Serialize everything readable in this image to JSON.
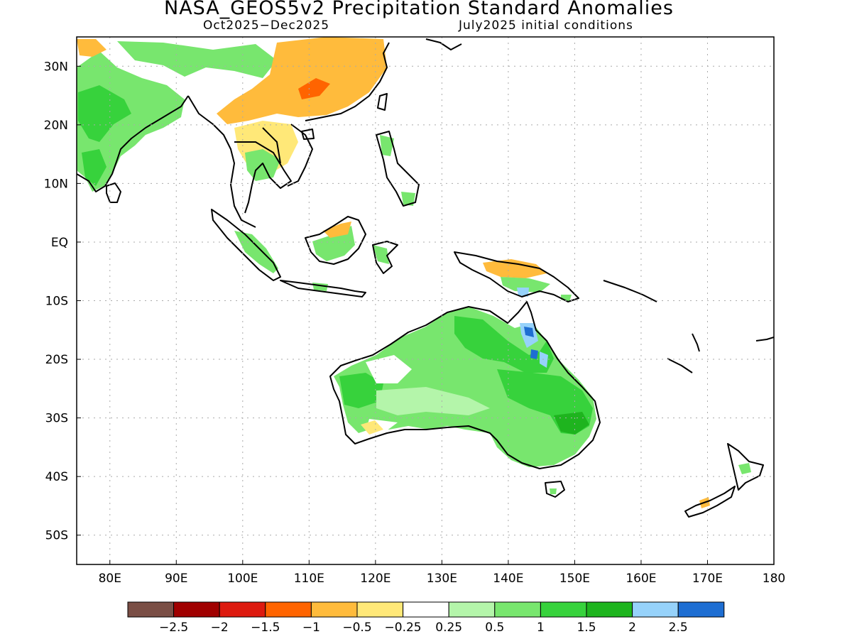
{
  "title": "NASA_GEOS5v2 Precipitation Standard Anomalies",
  "period": "Oct2025−Dec2025",
  "initial_conditions": "July2025 initial conditions",
  "map": {
    "lon_range": [
      75,
      180
    ],
    "lat_range": [
      -55,
      35
    ],
    "lon_ticks": [
      {
        "v": 80,
        "label": "80E"
      },
      {
        "v": 90,
        "label": "90E"
      },
      {
        "v": 100,
        "label": "100E"
      },
      {
        "v": 110,
        "label": "110E"
      },
      {
        "v": 120,
        "label": "120E"
      },
      {
        "v": 130,
        "label": "130E"
      },
      {
        "v": 140,
        "label": "140E"
      },
      {
        "v": 150,
        "label": "150E"
      },
      {
        "v": 160,
        "label": "160E"
      },
      {
        "v": 170,
        "label": "170E"
      },
      {
        "v": 180,
        "label": "180"
      }
    ],
    "lat_ticks": [
      {
        "v": 30,
        "label": "30N"
      },
      {
        "v": 20,
        "label": "20N"
      },
      {
        "v": 10,
        "label": "10N"
      },
      {
        "v": 0,
        "label": "EQ"
      },
      {
        "v": -10,
        "label": "10S"
      },
      {
        "v": -20,
        "label": "20S"
      },
      {
        "v": -30,
        "label": "30S"
      },
      {
        "v": -40,
        "label": "40S"
      },
      {
        "v": -50,
        "label": "50S"
      }
    ],
    "grid": true
  },
  "colorbar": {
    "colors": [
      "#7a4e45",
      "#a00000",
      "#dd1a0f",
      "#ff6400",
      "#ffbb3c",
      "#ffe878",
      "#ffffff",
      "#b4f5aa",
      "#78e66e",
      "#37d23c",
      "#1eb41e",
      "#96d2fa",
      "#1e6ed2"
    ],
    "labels": [
      "−2.5",
      "−2",
      "−1.5",
      "−1",
      "−0.5",
      "−0.25",
      "0.25",
      "0.5",
      "1",
      "1.5",
      "2",
      "2.5"
    ]
  }
}
